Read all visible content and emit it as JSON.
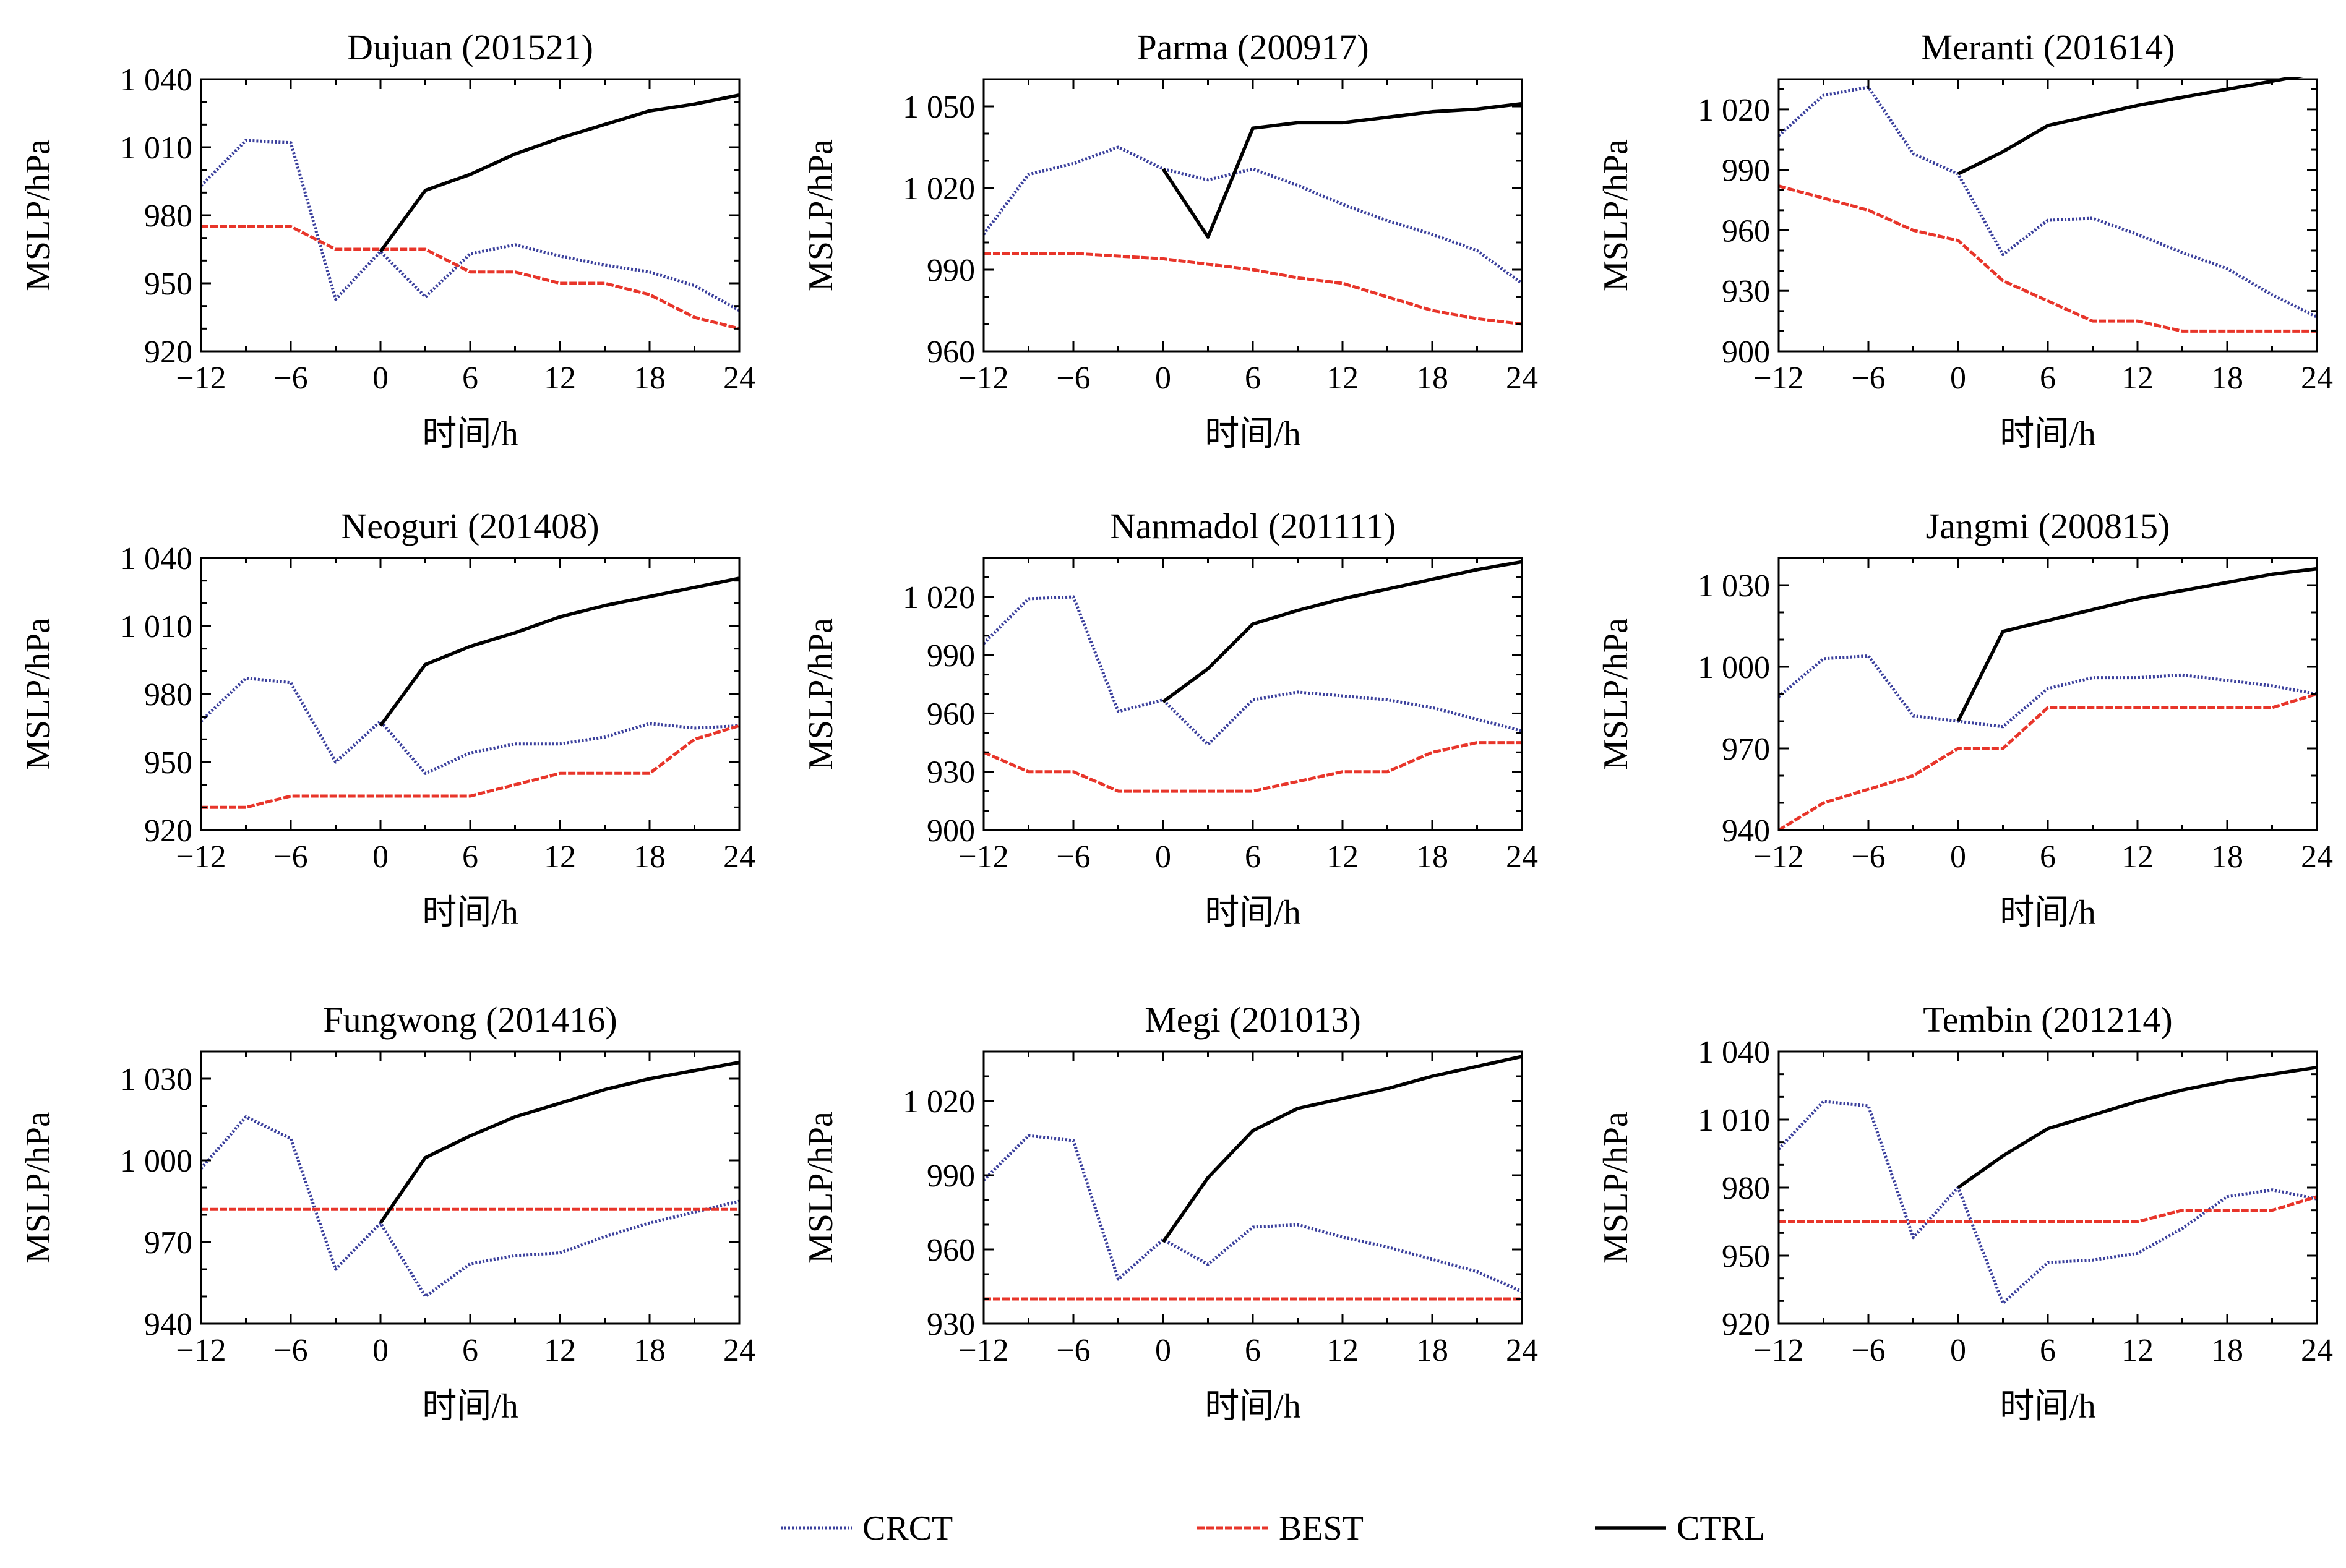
{
  "colors": {
    "CRCT": "#3a3f9c",
    "BEST": "#e8352a",
    "CTRL": "#000000"
  },
  "legend": {
    "items": [
      "CRCT",
      "BEST",
      "CTRL"
    ],
    "placement": "bottom-center"
  },
  "chart_data": [
    {
      "type": "line",
      "title": "Dujuan (201521)",
      "xlabel": "时间/h",
      "ylabel": "MSLP/hPa",
      "xlim": [
        -12,
        24
      ],
      "ylim": [
        920,
        1040
      ],
      "xticks": [
        -12,
        -6,
        0,
        6,
        12,
        18,
        24
      ],
      "xtick_labels": [
        "−12",
        "−6",
        "0",
        "6",
        "12",
        "18",
        "24"
      ],
      "yticks": [
        920,
        950,
        980,
        1010,
        1040
      ],
      "ytick_labels": [
        "920",
        "950",
        "980",
        "1 010",
        "1 040"
      ],
      "series": [
        {
          "name": "CRCT",
          "x": [
            -12,
            -9,
            -6,
            -3,
            0,
            3,
            6,
            9,
            12,
            15,
            18,
            21,
            24
          ],
          "y": [
            993,
            1013,
            1012,
            943,
            964,
            944,
            963,
            967,
            962,
            958,
            955,
            949,
            938
          ]
        },
        {
          "name": "BEST",
          "x": [
            -12,
            -9,
            -6,
            -3,
            0,
            3,
            6,
            9,
            12,
            15,
            18,
            21,
            24
          ],
          "y": [
            975,
            975,
            975,
            965,
            965,
            965,
            955,
            955,
            950,
            950,
            945,
            935,
            930
          ]
        },
        {
          "name": "CTRL",
          "x": [
            0,
            3,
            6,
            9,
            12,
            15,
            18,
            21,
            24
          ],
          "y": [
            964,
            991,
            998,
            1007,
            1014,
            1020,
            1026,
            1029,
            1033
          ]
        }
      ]
    },
    {
      "type": "line",
      "title": "Parma (200917)",
      "xlabel": "时间/h",
      "ylabel": "MSLP/hPa",
      "xlim": [
        -12,
        24
      ],
      "ylim": [
        960,
        1060
      ],
      "xticks": [
        -12,
        -6,
        0,
        6,
        12,
        18,
        24
      ],
      "xtick_labels": [
        "−12",
        "−6",
        "0",
        "6",
        "12",
        "18",
        "24"
      ],
      "yticks": [
        960,
        990,
        1020,
        1050
      ],
      "ytick_labels": [
        "960",
        "990",
        "1 020",
        "1 050"
      ],
      "series": [
        {
          "name": "CRCT",
          "x": [
            -12,
            -9,
            -6,
            -3,
            0,
            3,
            6,
            9,
            12,
            15,
            18,
            21,
            24
          ],
          "y": [
            1003,
            1025,
            1029,
            1035,
            1027,
            1023,
            1027,
            1021,
            1014,
            1008,
            1003,
            997,
            985
          ]
        },
        {
          "name": "BEST",
          "x": [
            -12,
            -9,
            -6,
            -3,
            0,
            3,
            6,
            9,
            12,
            15,
            18,
            21,
            24
          ],
          "y": [
            996,
            996,
            996,
            995,
            994,
            992,
            990,
            987,
            985,
            980,
            975,
            972,
            970
          ]
        },
        {
          "name": "CTRL",
          "x": [
            0,
            3,
            6,
            9,
            12,
            15,
            18,
            21,
            24
          ],
          "y": [
            1027,
            1002,
            1042,
            1044,
            1044,
            1046,
            1048,
            1049,
            1051
          ]
        }
      ]
    },
    {
      "type": "line",
      "title": "Meranti (201614)",
      "xlabel": "时间/h",
      "ylabel": "MSLP/hPa",
      "xlim": [
        -12,
        24
      ],
      "ylim": [
        900,
        1035
      ],
      "xticks": [
        -12,
        -6,
        0,
        6,
        12,
        18,
        24
      ],
      "xtick_labels": [
        "−12",
        "−6",
        "0",
        "6",
        "12",
        "18",
        "24"
      ],
      "yticks": [
        900,
        930,
        960,
        990,
        1020
      ],
      "ytick_labels": [
        "900",
        "930",
        "960",
        "990",
        "1 020"
      ],
      "series": [
        {
          "name": "CRCT",
          "x": [
            -12,
            -9,
            -6,
            -3,
            0,
            3,
            6,
            9,
            12,
            15,
            18,
            21,
            24
          ],
          "y": [
            1007,
            1027,
            1031,
            998,
            988,
            948,
            965,
            966,
            958,
            949,
            941,
            928,
            917
          ]
        },
        {
          "name": "BEST",
          "x": [
            -12,
            -9,
            -6,
            -3,
            0,
            3,
            6,
            9,
            12,
            15,
            18,
            21,
            24
          ],
          "y": [
            982,
            976,
            970,
            960,
            955,
            935,
            925,
            915,
            915,
            910,
            910,
            910,
            910
          ]
        },
        {
          "name": "CTRL",
          "x": [
            0,
            3,
            6,
            9,
            12,
            15,
            18,
            21,
            24
          ],
          "y": [
            988,
            999,
            1012,
            1017,
            1022,
            1026,
            1030,
            1034,
            1038
          ]
        }
      ]
    },
    {
      "type": "line",
      "title": "Neoguri (201408)",
      "xlabel": "时间/h",
      "ylabel": "MSLP/hPa",
      "xlim": [
        -12,
        24
      ],
      "ylim": [
        920,
        1040
      ],
      "xticks": [
        -12,
        -6,
        0,
        6,
        12,
        18,
        24
      ],
      "xtick_labels": [
        "−12",
        "−6",
        "0",
        "6",
        "12",
        "18",
        "24"
      ],
      "yticks": [
        920,
        950,
        980,
        1010,
        1040
      ],
      "ytick_labels": [
        "920",
        "950",
        "980",
        "1 010",
        "1 040"
      ],
      "series": [
        {
          "name": "CRCT",
          "x": [
            -12,
            -9,
            -6,
            -3,
            0,
            3,
            6,
            9,
            12,
            15,
            18,
            21,
            24
          ],
          "y": [
            968,
            987,
            985,
            950,
            968,
            945,
            954,
            958,
            958,
            961,
            967,
            965,
            966
          ]
        },
        {
          "name": "BEST",
          "x": [
            -12,
            -9,
            -6,
            -3,
            0,
            3,
            6,
            9,
            12,
            15,
            18,
            21,
            24
          ],
          "y": [
            930,
            930,
            935,
            935,
            935,
            935,
            935,
            940,
            945,
            945,
            945,
            960,
            966
          ]
        },
        {
          "name": "CTRL",
          "x": [
            0,
            3,
            6,
            9,
            12,
            15,
            18,
            21,
            24
          ],
          "y": [
            966,
            993,
            1001,
            1007,
            1014,
            1019,
            1023,
            1027,
            1031
          ]
        }
      ]
    },
    {
      "type": "line",
      "title": "Nanmadol (201111)",
      "xlabel": "时间/h",
      "ylabel": "MSLP/hPa",
      "xlim": [
        -12,
        24
      ],
      "ylim": [
        900,
        1040
      ],
      "xticks": [
        -12,
        -6,
        0,
        6,
        12,
        18,
        24
      ],
      "xtick_labels": [
        "−12",
        "−6",
        "0",
        "6",
        "12",
        "18",
        "24"
      ],
      "yticks": [
        900,
        930,
        960,
        990,
        1020
      ],
      "ytick_labels": [
        "900",
        "930",
        "960",
        "990",
        "1 020"
      ],
      "series": [
        {
          "name": "CRCT",
          "x": [
            -12,
            -9,
            -6,
            -3,
            0,
            3,
            6,
            9,
            12,
            15,
            18,
            21,
            24
          ],
          "y": [
            996,
            1019,
            1020,
            961,
            967,
            944,
            967,
            971,
            969,
            967,
            963,
            957,
            951
          ]
        },
        {
          "name": "BEST",
          "x": [
            -12,
            -9,
            -6,
            -3,
            0,
            3,
            6,
            9,
            12,
            15,
            18,
            21,
            24
          ],
          "y": [
            940,
            930,
            930,
            920,
            920,
            920,
            920,
            925,
            930,
            930,
            940,
            945,
            945
          ]
        },
        {
          "name": "CTRL",
          "x": [
            0,
            3,
            6,
            9,
            12,
            15,
            18,
            21,
            24
          ],
          "y": [
            966,
            983,
            1006,
            1013,
            1019,
            1024,
            1029,
            1034,
            1038
          ]
        }
      ]
    },
    {
      "type": "line",
      "title": "Jangmi (200815)",
      "xlabel": "时间/h",
      "ylabel": "MSLP/hPa",
      "xlim": [
        -12,
        24
      ],
      "ylim": [
        940,
        1040
      ],
      "xticks": [
        -12,
        -6,
        0,
        6,
        12,
        18,
        24
      ],
      "xtick_labels": [
        "−12",
        "−6",
        "0",
        "6",
        "12",
        "18",
        "24"
      ],
      "yticks": [
        940,
        970,
        1000,
        1030
      ],
      "ytick_labels": [
        "940",
        "970",
        "1 000",
        "1 030"
      ],
      "series": [
        {
          "name": "CRCT",
          "x": [
            -12,
            -9,
            -6,
            -3,
            0,
            3,
            6,
            9,
            12,
            15,
            18,
            21,
            24
          ],
          "y": [
            989,
            1003,
            1004,
            982,
            980,
            978,
            992,
            996,
            996,
            997,
            995,
            993,
            990
          ]
        },
        {
          "name": "BEST",
          "x": [
            -12,
            -9,
            -6,
            -3,
            0,
            3,
            6,
            9,
            12,
            15,
            18,
            21,
            24
          ],
          "y": [
            940,
            950,
            955,
            960,
            970,
            970,
            985,
            985,
            985,
            985,
            985,
            985,
            990
          ]
        },
        {
          "name": "CTRL",
          "x": [
            0,
            3,
            6,
            9,
            12,
            15,
            18,
            21,
            24
          ],
          "y": [
            980,
            1013,
            1017,
            1021,
            1025,
            1028,
            1031,
            1034,
            1036
          ]
        }
      ]
    },
    {
      "type": "line",
      "title": "Fungwong (201416)",
      "xlabel": "时间/h",
      "ylabel": "MSLP/hPa",
      "xlim": [
        -12,
        24
      ],
      "ylim": [
        940,
        1040
      ],
      "xticks": [
        -12,
        -6,
        0,
        6,
        12,
        18,
        24
      ],
      "xtick_labels": [
        "−12",
        "−6",
        "0",
        "6",
        "12",
        "18",
        "24"
      ],
      "yticks": [
        940,
        970,
        1000,
        1030
      ],
      "ytick_labels": [
        "940",
        "970",
        "1 000",
        "1 030"
      ],
      "series": [
        {
          "name": "CRCT",
          "x": [
            -12,
            -9,
            -6,
            -3,
            0,
            3,
            6,
            9,
            12,
            15,
            18,
            21,
            24
          ],
          "y": [
            997,
            1016,
            1008,
            960,
            977,
            950,
            962,
            965,
            966,
            972,
            977,
            981,
            985
          ]
        },
        {
          "name": "BEST",
          "x": [
            -12,
            24
          ],
          "y": [
            982,
            982
          ]
        },
        {
          "name": "CTRL",
          "x": [
            0,
            3,
            6,
            9,
            12,
            15,
            18,
            21,
            24
          ],
          "y": [
            977,
            1001,
            1009,
            1016,
            1021,
            1026,
            1030,
            1033,
            1036
          ]
        }
      ]
    },
    {
      "type": "line",
      "title": "Megi (201013)",
      "xlabel": "时间/h",
      "ylabel": "MSLP/hPa",
      "xlim": [
        -12,
        24
      ],
      "ylim": [
        930,
        1040
      ],
      "xticks": [
        -12,
        -6,
        0,
        6,
        12,
        18,
        24
      ],
      "xtick_labels": [
        "−12",
        "−6",
        "0",
        "6",
        "12",
        "18",
        "24"
      ],
      "yticks": [
        930,
        960,
        990,
        1020
      ],
      "ytick_labels": [
        "930",
        "960",
        "990",
        "1 020"
      ],
      "series": [
        {
          "name": "CRCT",
          "x": [
            -12,
            -9,
            -6,
            -3,
            0,
            3,
            6,
            9,
            12,
            15,
            18,
            21,
            24
          ],
          "y": [
            988,
            1006,
            1004,
            948,
            964,
            954,
            969,
            970,
            965,
            961,
            956,
            951,
            943
          ]
        },
        {
          "name": "BEST",
          "x": [
            -12,
            24
          ],
          "y": [
            940,
            940
          ]
        },
        {
          "name": "CTRL",
          "x": [
            0,
            3,
            6,
            9,
            12,
            15,
            18,
            21,
            24
          ],
          "y": [
            963,
            989,
            1008,
            1017,
            1021,
            1025,
            1030,
            1034,
            1038
          ]
        }
      ]
    },
    {
      "type": "line",
      "title": "Tembin (201214)",
      "xlabel": "时间/h",
      "ylabel": "MSLP/hPa",
      "xlim": [
        -12,
        24
      ],
      "ylim": [
        920,
        1040
      ],
      "xticks": [
        -12,
        -6,
        0,
        6,
        12,
        18,
        24
      ],
      "xtick_labels": [
        "−12",
        "−6",
        "0",
        "6",
        "12",
        "18",
        "24"
      ],
      "yticks": [
        920,
        950,
        980,
        1010,
        1040
      ],
      "ytick_labels": [
        "920",
        "950",
        "980",
        "1 010",
        "1 040"
      ],
      "series": [
        {
          "name": "CRCT",
          "x": [
            -12,
            -9,
            -6,
            -3,
            0,
            3,
            6,
            9,
            12,
            15,
            18,
            21,
            24
          ],
          "y": [
            997,
            1018,
            1016,
            958,
            980,
            929,
            947,
            948,
            951,
            962,
            976,
            979,
            975
          ]
        },
        {
          "name": "BEST",
          "x": [
            -12,
            -9,
            -6,
            -3,
            0,
            3,
            6,
            9,
            12,
            15,
            18,
            21,
            24
          ],
          "y": [
            965,
            965,
            965,
            965,
            965,
            965,
            965,
            965,
            965,
            970,
            970,
            970,
            976
          ]
        },
        {
          "name": "CTRL",
          "x": [
            0,
            3,
            6,
            9,
            12,
            15,
            18,
            21,
            24
          ],
          "y": [
            980,
            994,
            1006,
            1012,
            1018,
            1023,
            1027,
            1030,
            1033
          ]
        }
      ]
    }
  ]
}
